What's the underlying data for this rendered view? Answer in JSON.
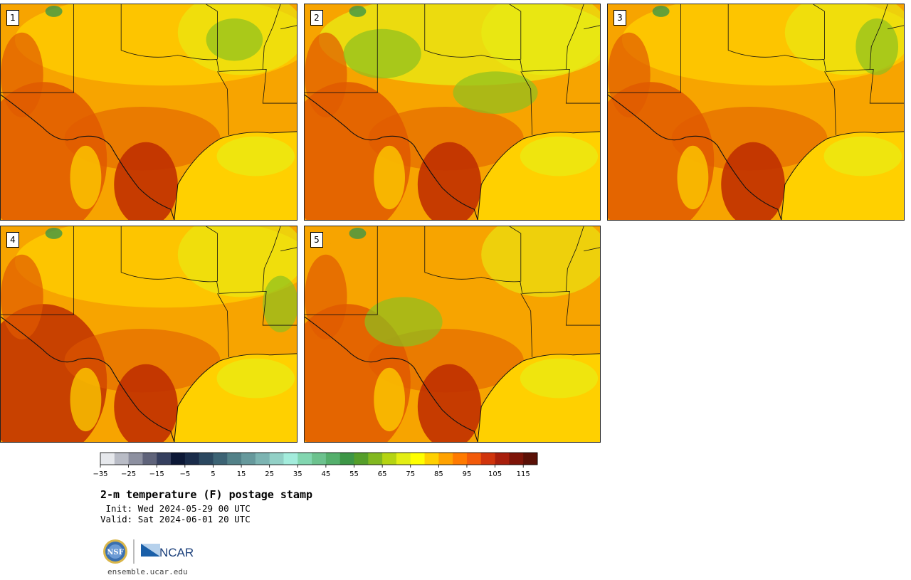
{
  "title": "2-m temperature (F) postage stamp",
  "init_label": "Init:",
  "init_value": "Wed 2024-05-29 00 UTC",
  "valid_label": "Valid:",
  "valid_value": "Sat 2024-06-01 20 UTC",
  "website": "ensemble.ucar.edu",
  "logos": {
    "nsf_text": "NSF",
    "ncar_text": "NCAR"
  },
  "panels": [
    {
      "label": "1",
      "scheme": "hot"
    },
    {
      "label": "2",
      "scheme": "green-north"
    },
    {
      "label": "3",
      "scheme": "mild"
    },
    {
      "label": "4",
      "scheme": "hot-west"
    },
    {
      "label": "5",
      "scheme": "green-center"
    }
  ],
  "colorbar": {
    "ticks": [
      "−35",
      "−25",
      "−15",
      "−5",
      "5",
      "15",
      "25",
      "35",
      "45",
      "55",
      "65",
      "75",
      "85",
      "95",
      "105",
      "115"
    ],
    "colors": [
      "#e6e8ec",
      "#b9bcc6",
      "#8d90a0",
      "#5f637a",
      "#353f5e",
      "#0c1836",
      "#1a2c4a",
      "#2b4860",
      "#3c6374",
      "#528188",
      "#66999c",
      "#7cb4b2",
      "#92d0c6",
      "#a3ecdc",
      "#82d6b0",
      "#6cc28e",
      "#54af6c",
      "#3d9646",
      "#559e2a",
      "#82b820",
      "#b5d412",
      "#e3ee14",
      "#ffff00",
      "#ffd000",
      "#ffa200",
      "#ff7a00",
      "#f25a0a",
      "#d0340c",
      "#a81e0c",
      "#7e1408",
      "#5a1006"
    ]
  },
  "colors": {
    "land_base": "#f7a400",
    "hot": "#e05a00",
    "very_hot": "#c03000",
    "mild": "#ffd000",
    "cool": "#e8ee14",
    "green": "#8cc020",
    "gulf": "#ffd000"
  }
}
